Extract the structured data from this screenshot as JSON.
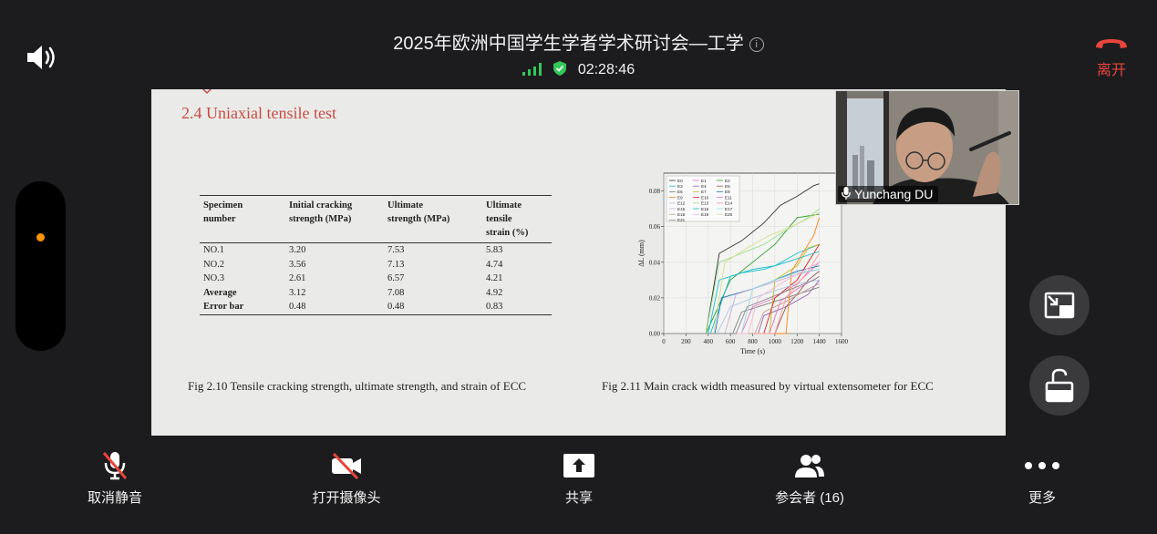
{
  "meeting": {
    "title": "2025年欧洲中国学生学者学术研讨会—工学",
    "timer": "02:28:46",
    "leave_label": "离开"
  },
  "colors": {
    "leave": "#e8453c",
    "signal": "#34c759",
    "recording_dot": "#ff9500"
  },
  "slide": {
    "heading": "2.4 Uniaxial tensile test",
    "table": {
      "headers": [
        [
          "Specimen",
          "number"
        ],
        [
          "Initial cracking",
          "strength (MPa)"
        ],
        [
          "Ultimate",
          "strength (MPa)"
        ],
        [
          "Ultimate tensile",
          "strain (%)"
        ]
      ],
      "rows": [
        [
          "NO.1",
          "3.20",
          "7.53",
          "5.83"
        ],
        [
          "NO.2",
          "3.56",
          "7.13",
          "4.74"
        ],
        [
          "NO.3",
          "2.61",
          "6.57",
          "4.21"
        ],
        [
          "Average",
          "3.12",
          "7.08",
          "4.92"
        ],
        [
          "Error bar",
          "0.48",
          "0.48",
          "0.83"
        ]
      ]
    },
    "caption_left": "Fig 2.10 Tensile cracking strength, ultimate strength, and strain of ECC",
    "caption_right": "Fig 2.11 Main crack width measured by virtual extensometer for ECC"
  },
  "chart_data": {
    "type": "line",
    "xlabel": "Time (s)",
    "ylabel": "ΔL (mm)",
    "xlim": [
      0,
      1600
    ],
    "ylim": [
      0,
      0.09
    ],
    "x_ticks": [
      "0",
      "200",
      "400",
      "600",
      "800",
      "1000",
      "1200",
      "1400",
      "1600"
    ],
    "y_ticks": [
      "0.00",
      "0.02",
      "0.04",
      "0.06",
      "0.08"
    ],
    "legend": [
      "E0",
      "E1",
      "E2",
      "E3",
      "E4",
      "E5",
      "E6",
      "E7",
      "E8",
      "E9",
      "E10",
      "E11",
      "E12",
      "E13",
      "E14",
      "E15",
      "E16",
      "E17",
      "E18",
      "E19",
      "E20",
      "E21"
    ],
    "legend_placement": "top-left",
    "series": [
      {
        "name": "E0",
        "color": "#333333",
        "x": [
          0,
          380,
          500,
          700,
          900,
          1050,
          1200,
          1350,
          1400
        ],
        "y": [
          0,
          0,
          0.045,
          0.052,
          0.062,
          0.072,
          0.077,
          0.083,
          0.084
        ]
      },
      {
        "name": "E1",
        "color": "#e377c2",
        "x": [
          0,
          700,
          800,
          1000,
          1200,
          1400
        ],
        "y": [
          0,
          0,
          0.015,
          0.02,
          0.028,
          0.04
        ]
      },
      {
        "name": "E2",
        "color": "#2ca02c",
        "x": [
          0,
          380,
          600,
          800,
          1000,
          1200,
          1400
        ],
        "y": [
          0,
          0,
          0.03,
          0.04,
          0.05,
          0.065,
          0.067
        ]
      },
      {
        "name": "E3",
        "color": "#17becf",
        "x": [
          0,
          420,
          600,
          800,
          1000,
          1200,
          1400
        ],
        "y": [
          0,
          0,
          0.032,
          0.036,
          0.038,
          0.045,
          0.05
        ]
      },
      {
        "name": "E4",
        "color": "#9467bd",
        "x": [
          0,
          850,
          900,
          1100,
          1300,
          1400
        ],
        "y": [
          0,
          0,
          0.01,
          0.015,
          0.022,
          0.03
        ]
      },
      {
        "name": "E5",
        "color": "#8c564b",
        "x": [
          0,
          1000,
          1100,
          1200,
          1300,
          1400
        ],
        "y": [
          0,
          0,
          0.015,
          0.022,
          0.03,
          0.035
        ]
      },
      {
        "name": "E6",
        "color": "#7f7f7f",
        "x": [
          0,
          620,
          700,
          900,
          1100,
          1300,
          1400
        ],
        "y": [
          0,
          0,
          0.012,
          0.016,
          0.02,
          0.024,
          0.026
        ]
      },
      {
        "name": "E7",
        "color": "#bcbd22",
        "x": [
          0,
          950,
          1000,
          1200,
          1300,
          1400
        ],
        "y": [
          0,
          0,
          0.03,
          0.038,
          0.048,
          0.05
        ]
      },
      {
        "name": "E8",
        "color": "#1f77b4",
        "x": [
          0,
          460,
          520,
          800,
          1000,
          1200,
          1400
        ],
        "y": [
          0,
          0,
          0.02,
          0.025,
          0.03,
          0.035,
          0.038
        ]
      },
      {
        "name": "E9",
        "color": "#ff7f0e",
        "x": [
          0,
          1100,
          1150,
          1250,
          1350,
          1400
        ],
        "y": [
          0,
          0,
          0.035,
          0.045,
          0.055,
          0.065
        ]
      },
      {
        "name": "E10",
        "color": "#d62728",
        "x": [
          0,
          900,
          1000,
          1200,
          1400
        ],
        "y": [
          0,
          0,
          0.02,
          0.03,
          0.05
        ]
      },
      {
        "name": "E11",
        "color": "#e377c2",
        "x": [
          0,
          950,
          1050,
          1200,
          1400
        ],
        "y": [
          0,
          0,
          0.018,
          0.025,
          0.032
        ]
      },
      {
        "name": "E12",
        "color": "#aec7e8",
        "x": [
          0,
          480,
          600,
          800,
          1000,
          1200,
          1400
        ],
        "y": [
          0,
          0,
          0.015,
          0.02,
          0.024,
          0.028,
          0.03
        ]
      },
      {
        "name": "E13",
        "color": "#98df8a",
        "x": [
          0,
          380,
          500,
          700,
          900,
          1100,
          1300,
          1400
        ],
        "y": [
          0,
          0,
          0.04,
          0.045,
          0.05,
          0.058,
          0.065,
          0.07
        ]
      },
      {
        "name": "E14",
        "color": "#ff9896",
        "x": [
          0,
          1000,
          1100,
          1300,
          1400
        ],
        "y": [
          0,
          0,
          0.02,
          0.035,
          0.045
        ]
      },
      {
        "name": "E15",
        "color": "#c5b0d5",
        "x": [
          0,
          550,
          650,
          850,
          1050,
          1250,
          1400
        ],
        "y": [
          0,
          0,
          0.022,
          0.026,
          0.03,
          0.034,
          0.036
        ]
      },
      {
        "name": "E16",
        "color": "#17becf",
        "x": [
          0,
          400,
          500,
          700,
          900,
          1100,
          1300,
          1400
        ],
        "y": [
          0,
          0,
          0.03,
          0.034,
          0.036,
          0.04,
          0.044,
          0.046
        ]
      },
      {
        "name": "E17",
        "color": "#9edae5",
        "x": [
          0,
          700,
          800,
          1000,
          1200,
          1400
        ],
        "y": [
          0,
          0,
          0.025,
          0.03,
          0.034,
          0.036
        ]
      },
      {
        "name": "E18",
        "color": "#c49c94",
        "x": [
          0,
          820,
          900,
          1100,
          1300,
          1400
        ],
        "y": [
          0,
          0,
          0.012,
          0.018,
          0.025,
          0.028
        ]
      },
      {
        "name": "E19",
        "color": "#f7b6d2",
        "x": [
          0,
          760,
          850,
          1050,
          1250,
          1400
        ],
        "y": [
          0,
          0,
          0.02,
          0.028,
          0.035,
          0.04
        ]
      },
      {
        "name": "E20",
        "color": "#dbdb8d",
        "x": [
          0,
          450,
          550,
          750,
          950,
          1150,
          1350,
          1400
        ],
        "y": [
          0,
          0,
          0.04,
          0.048,
          0.055,
          0.06,
          0.066,
          0.068
        ]
      },
      {
        "name": "E21",
        "color": "#8c8c8c",
        "x": [
          0,
          650,
          750,
          950,
          1150,
          1350,
          1400
        ],
        "y": [
          0,
          0,
          0.015,
          0.02,
          0.025,
          0.03,
          0.032
        ]
      }
    ]
  },
  "participant_video": {
    "name": "Yunchang DU"
  },
  "toolbar": {
    "mute_label": "取消静音",
    "camera_label": "打开摄像头",
    "share_label": "共享",
    "participants_label": "参会者 (16)",
    "more_label": "更多"
  }
}
